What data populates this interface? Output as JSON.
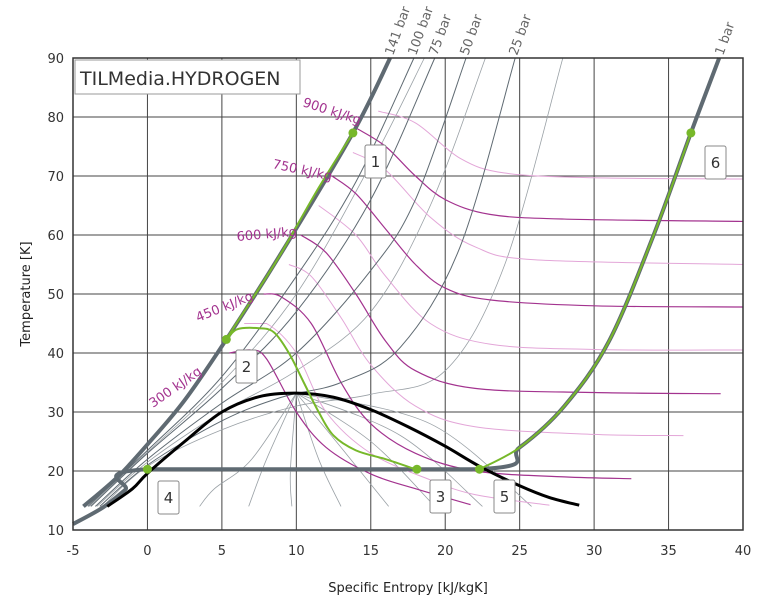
{
  "chart_data": {
    "type": "line",
    "title": "TILMedia.HYDROGEN",
    "xlabel": "Specific Entropy [kJ/kgK]",
    "ylabel": "Temperature [K]",
    "xlim": [
      -5,
      40
    ],
    "ylim": [
      10,
      90
    ],
    "xticks": [
      "-5",
      "0",
      "5",
      "10",
      "15",
      "20",
      "25",
      "30",
      "35",
      "40"
    ],
    "yticks": [
      "10",
      "20",
      "30",
      "40",
      "50",
      "60",
      "70",
      "80",
      "90"
    ],
    "grid": true,
    "colors": {
      "saturation": "#000000",
      "isobar": "#5f6a72",
      "isenthalp": "#a3338f",
      "isenthalp_light": "#e3a6d8",
      "process": "#77b82a"
    },
    "saturation_curve": [
      [
        -2.7,
        14
      ],
      [
        -1,
        17
      ],
      [
        0,
        19.6
      ],
      [
        2.5,
        25
      ],
      [
        5,
        30
      ],
      [
        7.5,
        32.6
      ],
      [
        10,
        33.2
      ],
      [
        12.5,
        32.5
      ],
      [
        15,
        30.4
      ],
      [
        17.5,
        27.5
      ],
      [
        20,
        24.2
      ],
      [
        22.3,
        20.8
      ],
      [
        25,
        17.5
      ],
      [
        27,
        15.5
      ],
      [
        29,
        14.2
      ]
    ],
    "isobars": [
      {
        "label": "141 bar",
        "bold": true,
        "points": [
          [
            -4.3,
            14
          ],
          [
            -2,
            19
          ],
          [
            0,
            24.5
          ],
          [
            2.5,
            32
          ],
          [
            5.3,
            42.3
          ],
          [
            9,
            57
          ],
          [
            13.8,
            77.3
          ],
          [
            16.3,
            90
          ]
        ]
      },
      {
        "label": "100 bar",
        "points": [
          [
            -4,
            14
          ],
          [
            0,
            23.5
          ],
          [
            5,
            36
          ],
          [
            10,
            53
          ],
          [
            14,
            69
          ],
          [
            17.9,
            90
          ]
        ]
      },
      {
        "label": "75 bar",
        "points": [
          [
            -3.8,
            14
          ],
          [
            0,
            23
          ],
          [
            5,
            34
          ],
          [
            10,
            47
          ],
          [
            15,
            66
          ],
          [
            19.3,
            90
          ]
        ]
      },
      {
        "label": "50 bar",
        "points": [
          [
            -3.5,
            14
          ],
          [
            0,
            22
          ],
          [
            5,
            31.5
          ],
          [
            10,
            40
          ],
          [
            15,
            54
          ],
          [
            18,
            66
          ],
          [
            21.4,
            90
          ]
        ]
      },
      {
        "label": "25 bar",
        "points": [
          [
            -3.2,
            14
          ],
          [
            0,
            21
          ],
          [
            5,
            28.5
          ],
          [
            9,
            32.5
          ],
          [
            13,
            35
          ],
          [
            17,
            41
          ],
          [
            21,
            58
          ],
          [
            24.7,
            90
          ]
        ]
      },
      {
        "label": "1 bar",
        "bold": true,
        "points": [
          [
            -5,
            11
          ],
          [
            -3,
            13.8
          ],
          [
            -1.5,
            16.8
          ],
          [
            0,
            20.3
          ],
          [
            22.3,
            20.3
          ],
          [
            25,
            24
          ],
          [
            28,
            31
          ],
          [
            31,
            42
          ],
          [
            34,
            60
          ],
          [
            36.5,
            77.3
          ],
          [
            38.4,
            90
          ]
        ]
      }
    ],
    "minor_isobars": [
      [
        [
          -3.9,
          14
        ],
        [
          0,
          23.2
        ],
        [
          5,
          35
        ],
        [
          10,
          50
        ],
        [
          15,
          72
        ],
        [
          18.6,
          90
        ]
      ],
      [
        [
          -3.4,
          14
        ],
        [
          0,
          21.5
        ],
        [
          5,
          30
        ],
        [
          10,
          37
        ],
        [
          15,
          47
        ],
        [
          19,
          65
        ],
        [
          22.7,
          90
        ]
      ],
      [
        [
          -3,
          14
        ],
        [
          0,
          20.8
        ],
        [
          5,
          27
        ],
        [
          10,
          31
        ],
        [
          15,
          33
        ],
        [
          20,
          37
        ],
        [
          24,
          55
        ],
        [
          27.9,
          90
        ]
      ],
      [
        [
          10,
          33.2
        ],
        [
          7,
          22
        ],
        [
          4.5,
          17
        ],
        [
          3.5,
          14
        ]
      ],
      [
        [
          10,
          33.2
        ],
        [
          8,
          22
        ],
        [
          6.8,
          14
        ]
      ],
      [
        [
          10,
          33.2
        ],
        [
          9.6,
          20
        ],
        [
          9.7,
          14
        ]
      ],
      [
        [
          10,
          33.2
        ],
        [
          11.5,
          22
        ],
        [
          13,
          14
        ]
      ],
      [
        [
          10,
          33.2
        ],
        [
          13,
          24
        ],
        [
          16.2,
          14
        ]
      ],
      [
        [
          10,
          33.2
        ],
        [
          15,
          25
        ],
        [
          19.3,
          14
        ]
      ],
      [
        [
          10,
          33.2
        ],
        [
          17,
          26
        ],
        [
          22.5,
          14
        ]
      ],
      [
        [
          10,
          33.2
        ],
        [
          19,
          28
        ],
        [
          25.8,
          14
        ]
      ]
    ],
    "isenthalps": [
      {
        "label": "300 kJ/kg",
        "points": [
          [
            5.5,
            40
          ],
          [
            7,
            40.5
          ],
          [
            8,
            39
          ],
          [
            10,
            30
          ],
          [
            12,
            24
          ],
          [
            15,
            19.5
          ],
          [
            18,
            17
          ],
          [
            21.7,
            14.3
          ]
        ]
      },
      {
        "points": [
          [
            6.5,
            45
          ],
          [
            8,
            45
          ],
          [
            10,
            40
          ],
          [
            12,
            30
          ],
          [
            15,
            23
          ],
          [
            19,
            18.5
          ],
          [
            22,
            16
          ],
          [
            27,
            14.2
          ]
        ],
        "light": true
      },
      {
        "label": "450 kJ/kg",
        "points": [
          [
            7.8,
            50
          ],
          [
            9,
            49.5
          ],
          [
            11,
            45
          ],
          [
            13,
            35
          ],
          [
            15,
            28
          ],
          [
            18,
            23
          ],
          [
            22,
            20
          ],
          [
            28,
            19
          ],
          [
            32.5,
            18.7
          ]
        ]
      },
      {
        "points": [
          [
            9.5,
            55
          ],
          [
            11,
            53
          ],
          [
            13,
            46
          ],
          [
            15,
            38
          ],
          [
            18,
            31
          ],
          [
            22,
            27.5
          ],
          [
            30,
            26.2
          ],
          [
            36,
            26
          ]
        ],
        "light": true
      },
      {
        "label": "600 kJ/kg",
        "points": [
          [
            10.3,
            60
          ],
          [
            12,
            57
          ],
          [
            14,
            50
          ],
          [
            16,
            42
          ],
          [
            18,
            37
          ],
          [
            22,
            34
          ],
          [
            30,
            33.3
          ],
          [
            38.5,
            33.1
          ]
        ]
      },
      {
        "points": [
          [
            11.5,
            65
          ],
          [
            14,
            60
          ],
          [
            16,
            53
          ],
          [
            19,
            45
          ],
          [
            23,
            41.5
          ],
          [
            30,
            40.6
          ],
          [
            40,
            40.5
          ]
        ],
        "light": true
      },
      {
        "label": "750 kJ/kg",
        "points": [
          [
            12.4,
            70
          ],
          [
            14,
            67
          ],
          [
            16,
            61
          ],
          [
            18,
            55
          ],
          [
            20,
            51
          ],
          [
            23,
            49
          ],
          [
            30,
            48
          ],
          [
            40,
            47.8
          ]
        ]
      },
      {
        "points": [
          [
            13.8,
            74
          ],
          [
            16,
            71
          ],
          [
            19,
            63
          ],
          [
            22,
            58
          ],
          [
            26,
            55.8
          ],
          [
            40,
            55
          ]
        ],
        "light": true
      },
      {
        "label": "900 kJ/kg",
        "points": [
          [
            14.1,
            78
          ],
          [
            16,
            75
          ],
          [
            18,
            70
          ],
          [
            20,
            66
          ],
          [
            23,
            63.5
          ],
          [
            28,
            62.7
          ],
          [
            40,
            62.3
          ]
        ]
      },
      {
        "points": [
          [
            15.5,
            81
          ],
          [
            18,
            79
          ],
          [
            21,
            73
          ],
          [
            24,
            70.5
          ],
          [
            30,
            69.7
          ],
          [
            40,
            69.5
          ]
        ],
        "light": true
      }
    ],
    "process": [
      [
        13.8,
        77.3
      ],
      [
        11.5,
        68
      ],
      [
        9,
        57
      ],
      [
        7,
        49
      ],
      [
        5.3,
        42.3
      ],
      [
        6,
        44
      ],
      [
        7.5,
        44.2
      ],
      [
        8.5,
        43.5
      ],
      [
        9.5,
        40
      ],
      [
        10.5,
        35
      ],
      [
        11.5,
        30
      ],
      [
        12.5,
        26
      ],
      [
        14,
        23.5
      ],
      [
        16,
        22
      ],
      [
        18,
        20.3
      ]
    ],
    "process_vapor": [
      [
        22.3,
        20.3
      ],
      [
        25,
        24
      ],
      [
        28,
        31
      ],
      [
        31,
        42
      ],
      [
        34,
        60
      ],
      [
        36.5,
        77.3
      ]
    ],
    "states": [
      {
        "label": "1",
        "s": 13.8,
        "T": 77.3
      },
      {
        "label": "2",
        "s": 5.3,
        "T": 42.3
      },
      {
        "label": "3",
        "s": 18.1,
        "T": 20.3
      },
      {
        "label": "4",
        "s": 0,
        "T": 20.3
      },
      {
        "label": "5",
        "s": 22.3,
        "T": 20.3
      },
      {
        "label": "6",
        "s": 36.5,
        "T": 77.3
      }
    ]
  }
}
